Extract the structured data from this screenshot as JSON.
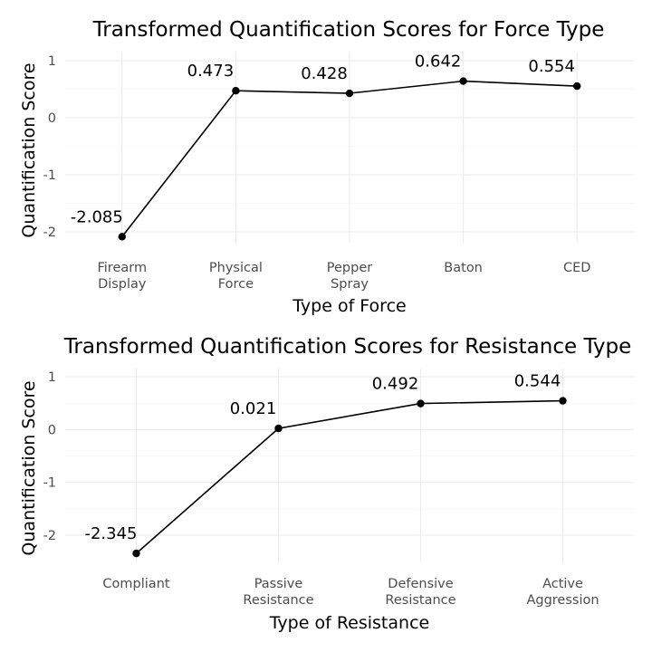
{
  "chart_data": [
    {
      "type": "line",
      "title": "Transformed Quantification Scores for Force Type",
      "xlabel": "Type of Force",
      "ylabel": "Quantification Score",
      "categories": [
        [
          "Firearm",
          "Display"
        ],
        [
          "Physical",
          "Force"
        ],
        [
          "Pepper",
          "Spray"
        ],
        [
          "Baton"
        ],
        [
          "CED"
        ]
      ],
      "values": [
        -2.085,
        0.473,
        0.428,
        0.642,
        0.554
      ],
      "data_labels": [
        "-2.085",
        "0.473",
        "0.428",
        "0.642",
        "0.554"
      ],
      "y_ticks": [
        1,
        0,
        -1,
        -2
      ],
      "y_tick_labels": [
        "1",
        "0",
        "-1",
        "-2"
      ],
      "ylim": [
        -2.2,
        1.15
      ],
      "grid": true,
      "legend": "none"
    },
    {
      "type": "line",
      "title": "Transformed Quantification Scores for Resistance Type",
      "xlabel": "Type of Resistance",
      "ylabel": "Quantification Score",
      "categories": [
        [
          "Compliant"
        ],
        [
          "Passive",
          "Resistance"
        ],
        [
          "Defensive",
          "Resistance"
        ],
        [
          "Active",
          "Aggression"
        ]
      ],
      "values": [
        -2.345,
        0.021,
        0.492,
        0.544
      ],
      "data_labels": [
        "-2.345",
        "0.021",
        "0.492",
        "0.544"
      ],
      "y_ticks": [
        1,
        0,
        -1,
        -2
      ],
      "y_tick_labels": [
        "1",
        "0",
        "-1",
        "-2"
      ],
      "ylim": [
        -2.5,
        1.15
      ],
      "grid": true,
      "legend": "none"
    }
  ]
}
